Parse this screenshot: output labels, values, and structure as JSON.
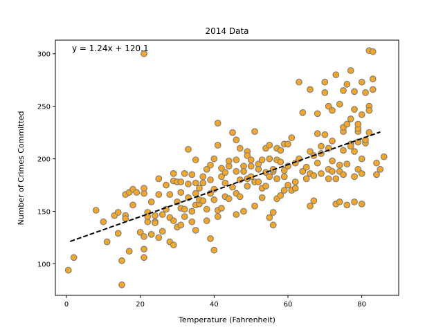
{
  "chart_data": {
    "type": "scatter",
    "title": "2014 Data",
    "xlabel": "Temperature (Fahrenheit)",
    "ylabel": "Number of Crimes Committed",
    "xlim": [
      -3,
      90
    ],
    "ylim": [
      70,
      313
    ],
    "xticks": [
      0,
      20,
      40,
      60,
      80
    ],
    "yticks": [
      100,
      150,
      200,
      250,
      300
    ],
    "grid": false,
    "annotation": "y = 1.24x + 120.1",
    "regression": {
      "slope": 1.24,
      "intercept": 120.1,
      "x_range": [
        1,
        85
      ]
    },
    "colors": {
      "marker_fill": "#f5a623",
      "marker_edge": "#7f7f7f",
      "line": "#000000"
    },
    "points": [
      [
        0.5,
        94
      ],
      [
        2,
        106
      ],
      [
        8,
        151
      ],
      [
        10,
        140
      ],
      [
        11,
        121
      ],
      [
        13,
        146
      ],
      [
        14,
        129
      ],
      [
        15,
        80
      ],
      [
        15,
        103
      ],
      [
        14,
        149
      ],
      [
        16,
        146
      ],
      [
        16,
        166
      ],
      [
        17,
        112
      ],
      [
        16,
        143
      ],
      [
        17,
        168
      ],
      [
        18,
        171
      ],
      [
        18,
        156
      ],
      [
        19,
        168
      ],
      [
        20,
        130
      ],
      [
        21,
        126
      ],
      [
        21,
        106
      ],
      [
        21,
        114
      ],
      [
        21,
        167
      ],
      [
        21,
        172
      ],
      [
        21,
        300
      ],
      [
        22,
        140
      ],
      [
        22,
        149
      ],
      [
        22,
        145
      ],
      [
        23,
        159
      ],
      [
        23,
        128
      ],
      [
        24,
        140
      ],
      [
        24,
        146
      ],
      [
        24,
        139
      ],
      [
        25,
        166
      ],
      [
        25,
        125
      ],
      [
        25,
        181
      ],
      [
        26,
        131
      ],
      [
        26,
        147
      ],
      [
        27,
        152
      ],
      [
        27,
        175
      ],
      [
        28,
        121
      ],
      [
        28,
        144
      ],
      [
        28,
        166
      ],
      [
        29,
        141
      ],
      [
        29,
        118
      ],
      [
        29,
        179
      ],
      [
        29,
        186
      ],
      [
        30,
        159
      ],
      [
        30,
        135
      ],
      [
        30,
        178
      ],
      [
        31,
        153
      ],
      [
        31,
        168
      ],
      [
        31,
        178
      ],
      [
        31,
        137
      ],
      [
        32,
        145
      ],
      [
        32,
        186
      ],
      [
        32,
        152
      ],
      [
        33,
        163
      ],
      [
        33,
        209
      ],
      [
        33,
        176
      ],
      [
        34,
        150
      ],
      [
        34,
        185
      ],
      [
        34,
        140
      ],
      [
        35,
        132
      ],
      [
        35,
        156
      ],
      [
        35,
        167
      ],
      [
        35,
        177
      ],
      [
        35,
        199
      ],
      [
        36,
        157
      ],
      [
        36,
        172
      ],
      [
        36,
        161
      ],
      [
        37,
        160
      ],
      [
        37,
        177
      ],
      [
        37,
        183
      ],
      [
        38,
        141
      ],
      [
        38,
        190
      ],
      [
        38,
        152
      ],
      [
        39,
        124
      ],
      [
        39,
        167
      ],
      [
        39,
        180
      ],
      [
        39,
        194
      ],
      [
        40,
        113
      ],
      [
        40,
        171
      ],
      [
        40,
        200
      ],
      [
        40,
        161
      ],
      [
        41,
        151
      ],
      [
        41,
        145
      ],
      [
        41,
        234
      ],
      [
        41,
        213
      ],
      [
        42,
        183
      ],
      [
        42,
        191
      ],
      [
        42,
        153
      ],
      [
        43,
        164
      ],
      [
        43,
        177
      ],
      [
        43,
        187
      ],
      [
        44,
        162
      ],
      [
        44,
        193
      ],
      [
        44,
        198
      ],
      [
        45,
        225
      ],
      [
        45,
        173
      ],
      [
        46,
        218
      ],
      [
        46,
        167
      ],
      [
        46,
        147
      ],
      [
        46,
        188
      ],
      [
        46,
        199
      ],
      [
        47,
        164
      ],
      [
        47,
        210
      ],
      [
        47,
        180
      ],
      [
        48,
        150
      ],
      [
        48,
        193
      ],
      [
        48,
        188
      ],
      [
        49,
        174
      ],
      [
        49,
        207
      ],
      [
        49,
        181
      ],
      [
        49,
        203
      ],
      [
        50,
        183
      ],
      [
        50,
        199
      ],
      [
        50,
        193
      ],
      [
        51,
        155
      ],
      [
        51,
        226
      ],
      [
        51,
        178
      ],
      [
        52,
        195
      ],
      [
        52,
        178
      ],
      [
        52,
        190
      ],
      [
        53,
        172
      ],
      [
        53,
        163
      ],
      [
        53,
        199
      ],
      [
        54,
        174
      ],
      [
        54,
        210
      ],
      [
        54,
        187
      ],
      [
        55,
        144
      ],
      [
        55,
        183
      ],
      [
        55,
        200
      ],
      [
        55,
        213
      ],
      [
        56,
        188
      ],
      [
        56,
        190
      ],
      [
        56,
        149
      ],
      [
        56,
        137
      ],
      [
        57,
        162
      ],
      [
        57,
        181
      ],
      [
        57,
        210
      ],
      [
        57,
        199
      ],
      [
        58,
        165
      ],
      [
        58,
        197
      ],
      [
        58,
        208
      ],
      [
        59,
        183
      ],
      [
        59,
        170
      ],
      [
        59,
        189
      ],
      [
        59,
        214
      ],
      [
        60,
        193
      ],
      [
        60,
        175
      ],
      [
        60,
        214
      ],
      [
        61,
        170
      ],
      [
        61,
        220
      ],
      [
        62,
        196
      ],
      [
        62,
        172
      ],
      [
        62,
        178
      ],
      [
        63,
        273
      ],
      [
        63,
        200
      ],
      [
        64,
        244
      ],
      [
        64,
        188
      ],
      [
        64,
        188
      ],
      [
        65,
        181
      ],
      [
        65,
        192
      ],
      [
        66,
        186
      ],
      [
        66,
        266
      ],
      [
        66,
        207
      ],
      [
        66,
        155
      ],
      [
        67,
        203
      ],
      [
        67,
        160
      ],
      [
        67,
        184
      ],
      [
        68,
        224
      ],
      [
        68,
        243
      ],
      [
        68,
        196
      ],
      [
        69,
        212
      ],
      [
        69,
        205
      ],
      [
        69,
        186
      ],
      [
        70,
        223
      ],
      [
        70,
        263
      ],
      [
        70,
        273
      ],
      [
        71,
        181
      ],
      [
        71,
        250
      ],
      [
        71,
        210
      ],
      [
        71,
        190
      ],
      [
        72,
        188
      ],
      [
        72,
        198
      ],
      [
        72,
        246
      ],
      [
        72,
        217
      ],
      [
        73,
        181
      ],
      [
        73,
        157
      ],
      [
        73,
        280
      ],
      [
        74,
        194
      ],
      [
        74,
        188
      ],
      [
        74,
        252
      ],
      [
        74,
        159
      ],
      [
        75,
        208
      ],
      [
        75,
        226
      ],
      [
        75,
        265
      ],
      [
        75,
        185
      ],
      [
        75,
        230
      ],
      [
        76,
        233
      ],
      [
        76,
        271
      ],
      [
        76,
        195
      ],
      [
        76,
        156
      ],
      [
        77,
        238
      ],
      [
        77,
        284
      ],
      [
        77,
        214
      ],
      [
        77,
        212
      ],
      [
        78,
        207
      ],
      [
        78,
        247
      ],
      [
        78,
        264
      ],
      [
        78,
        183
      ],
      [
        78,
        159
      ],
      [
        79,
        226
      ],
      [
        79,
        229
      ],
      [
        79,
        233
      ],
      [
        79,
        216
      ],
      [
        79,
        190
      ],
      [
        80,
        186
      ],
      [
        80,
        200
      ],
      [
        80,
        273
      ],
      [
        80,
        242
      ],
      [
        80,
        157
      ],
      [
        81,
        215
      ],
      [
        81,
        263
      ],
      [
        81,
        218
      ],
      [
        82,
        250
      ],
      [
        82,
        246
      ],
      [
        82,
        225
      ],
      [
        82,
        303
      ],
      [
        83,
        302
      ],
      [
        83,
        276
      ],
      [
        83,
        266
      ],
      [
        84,
        196
      ],
      [
        84,
        185
      ],
      [
        85,
        190
      ],
      [
        86,
        202
      ]
    ]
  }
}
